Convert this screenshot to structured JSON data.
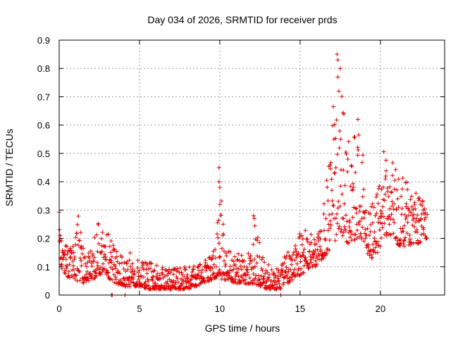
{
  "chart_data": {
    "type": "scatter",
    "title": "Day 034 of 2026, SRMTID for receiver prds",
    "xlabel": "GPS time / hours",
    "ylabel": "SRMTID / TECUs",
    "xlim": [
      0,
      24
    ],
    "ylim": [
      0,
      0.9
    ],
    "xticks": [
      0,
      5,
      10,
      15,
      20
    ],
    "xtick_labels": [
      "0",
      "5",
      "10",
      "15",
      "20"
    ],
    "yticks": [
      0,
      0.1,
      0.2,
      0.3,
      0.4,
      0.5,
      0.6,
      0.7,
      0.8,
      0.9
    ],
    "ytick_labels": [
      "0",
      "0.1",
      "0.2",
      "0.3",
      "0.4",
      "0.5",
      "0.6",
      "0.7",
      "0.8",
      "0.9"
    ],
    "grid": true,
    "marker": "plus",
    "marker_color": "#e00000",
    "series": [
      {
        "name": "SRMTID",
        "envelope_hours": [
          0.0,
          0.1,
          0.3,
          0.5,
          0.8,
          1.0,
          1.2,
          1.4,
          1.6,
          1.8,
          2.0,
          2.3,
          2.5,
          2.8,
          3.0,
          3.2,
          3.5,
          4.0,
          4.5,
          5.0,
          5.5,
          6.0,
          6.5,
          7.0,
          7.5,
          8.0,
          8.5,
          9.0,
          9.5,
          9.8,
          10.0,
          10.3,
          10.6,
          11.0,
          11.5,
          12.0,
          12.2,
          12.5,
          13.0,
          13.5,
          13.8,
          14.2,
          14.6,
          15.0,
          15.3,
          15.6,
          16.0,
          16.3,
          16.6,
          16.9,
          17.1,
          17.3,
          17.5,
          17.7,
          18.0,
          18.2,
          18.5,
          18.8,
          19.0,
          19.3,
          19.6,
          19.9,
          20.1,
          20.3,
          20.5,
          20.8,
          21.0,
          21.3,
          21.6,
          22.0,
          22.3,
          22.6,
          22.9
        ],
        "envelope_low": [
          0.12,
          0.1,
          0.08,
          0.06,
          0.06,
          0.05,
          0.05,
          0.04,
          0.04,
          0.05,
          0.05,
          0.06,
          0.07,
          0.08,
          0.07,
          0.05,
          0.04,
          0.03,
          0.03,
          0.03,
          0.02,
          0.02,
          0.02,
          0.02,
          0.02,
          0.02,
          0.03,
          0.04,
          0.05,
          0.06,
          0.06,
          0.05,
          0.05,
          0.04,
          0.04,
          0.04,
          0.04,
          0.03,
          0.02,
          0.02,
          0.02,
          0.03,
          0.06,
          0.07,
          0.08,
          0.1,
          0.1,
          0.12,
          0.14,
          0.16,
          0.18,
          0.2,
          0.22,
          0.2,
          0.18,
          0.18,
          0.2,
          0.2,
          0.18,
          0.13,
          0.12,
          0.15,
          0.2,
          0.2,
          0.22,
          0.2,
          0.18,
          0.17,
          0.17,
          0.18,
          0.18,
          0.19,
          0.2
        ],
        "envelope_high": [
          0.3,
          0.27,
          0.22,
          0.18,
          0.17,
          0.2,
          0.29,
          0.2,
          0.16,
          0.15,
          0.16,
          0.24,
          0.26,
          0.22,
          0.23,
          0.2,
          0.18,
          0.17,
          0.15,
          0.13,
          0.12,
          0.11,
          0.1,
          0.1,
          0.1,
          0.1,
          0.11,
          0.12,
          0.14,
          0.19,
          0.45,
          0.2,
          0.17,
          0.15,
          0.14,
          0.16,
          0.28,
          0.18,
          0.12,
          0.1,
          0.12,
          0.15,
          0.18,
          0.22,
          0.26,
          0.22,
          0.2,
          0.25,
          0.4,
          0.55,
          0.7,
          0.84,
          0.8,
          0.65,
          0.58,
          0.5,
          0.62,
          0.55,
          0.45,
          0.35,
          0.32,
          0.42,
          0.55,
          0.52,
          0.45,
          0.5,
          0.45,
          0.44,
          0.42,
          0.4,
          0.36,
          0.34,
          0.3
        ],
        "outliers": [
          [
            3.25,
            0.0
          ],
          [
            3.3,
            0.0
          ],
          [
            4.1,
            0.0
          ],
          [
            9.95,
            0.45
          ],
          [
            9.95,
            0.4
          ],
          [
            10.0,
            0.38
          ],
          [
            10.0,
            0.32
          ],
          [
            12.1,
            0.28
          ],
          [
            12.15,
            0.27
          ],
          [
            13.8,
            0.0
          ],
          [
            17.3,
            0.85
          ],
          [
            17.35,
            0.83
          ],
          [
            17.5,
            0.8
          ],
          [
            18.6,
            0.62
          ]
        ],
        "point_count": 1300
      }
    ]
  }
}
